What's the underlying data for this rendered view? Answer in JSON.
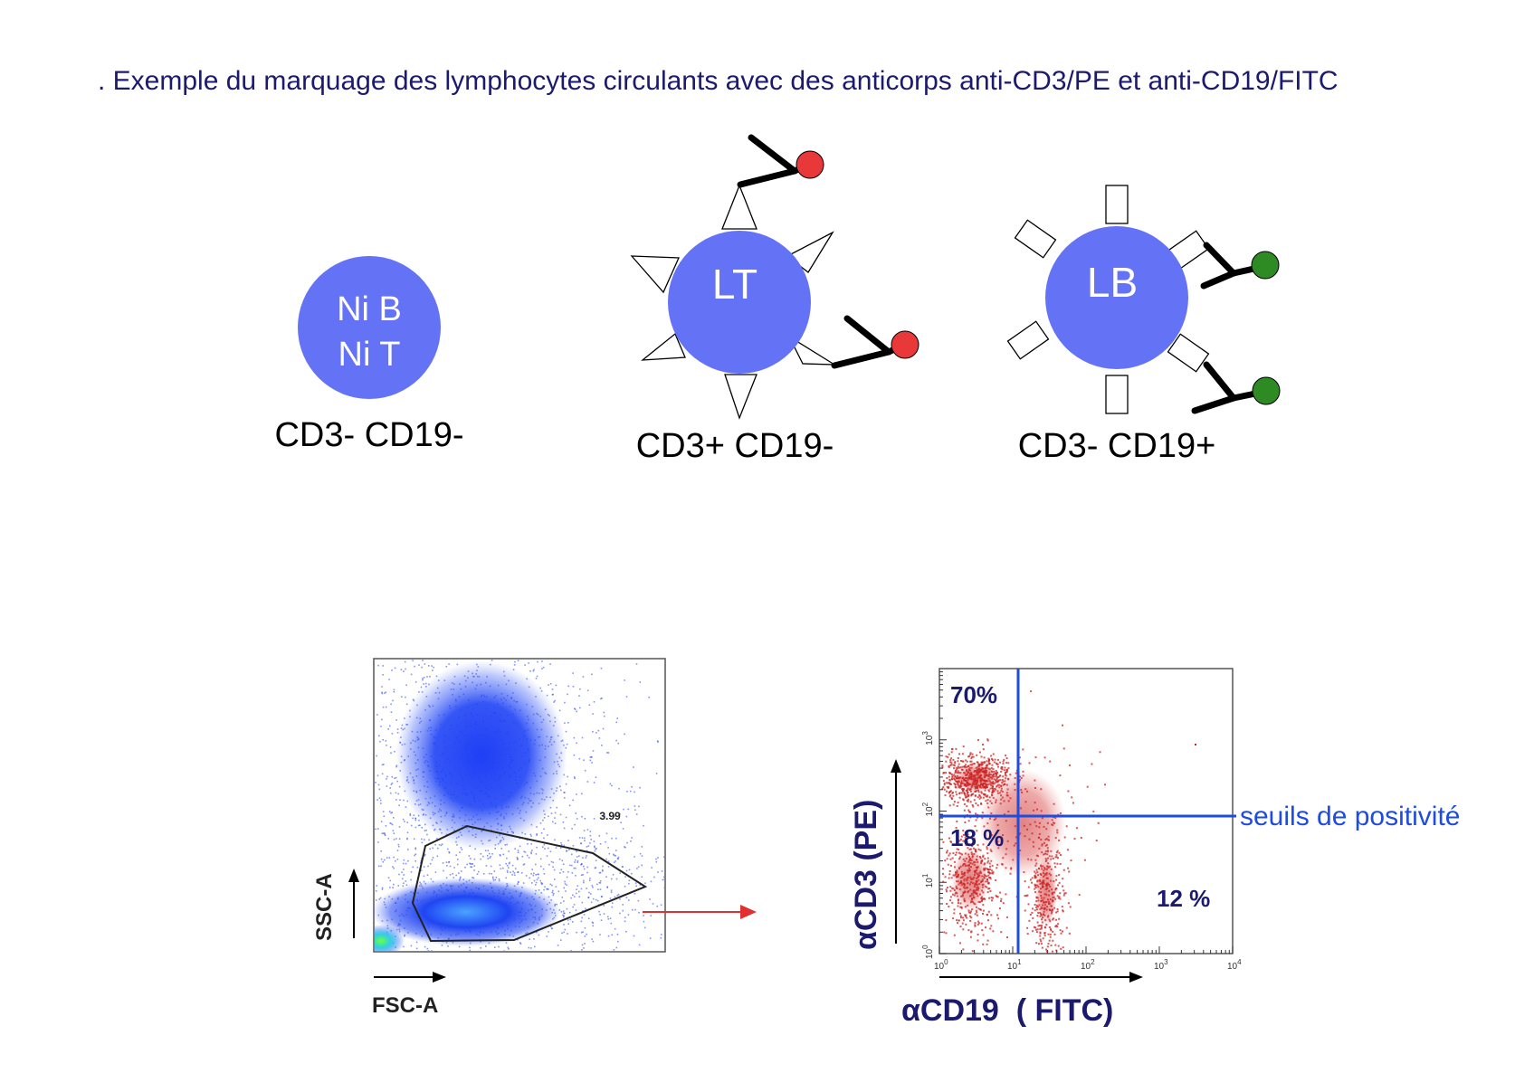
{
  "title": ". Exemple du marquage des lymphocytes circulants avec des anticorps anti-CD3/PE et anti-CD19/FITC",
  "colors": {
    "cell": "#6472f5",
    "pe_fluorophore": "#e8383a",
    "fitc_fluorophore": "#2e8a22",
    "heading": "#1c1a6e",
    "threshold": "#1d4ce0",
    "dots": "#cc2222",
    "flow_density": "#1d3df0",
    "arrow": "#e03030"
  },
  "cells": [
    {
      "label_line1": "Ni B",
      "label_line2": "Ni T",
      "phenotype": "CD3- CD19-"
    },
    {
      "label": "LT",
      "phenotype": "CD3+ CD19-"
    },
    {
      "label": "LB",
      "phenotype": "CD3- CD19+"
    }
  ],
  "flow_plot": {
    "gate_value": "3.99",
    "x_axis": "FSC-A",
    "y_axis": "SSC-A"
  },
  "quadrant_plot": {
    "x_axis": "αCD19  ( FITC)",
    "y_axis": "αCD3 (PE)",
    "quadrants": {
      "upper_left": "70%",
      "lower_left": "18 %",
      "lower_right": "12 %"
    },
    "threshold_label": "seuils de positivité",
    "x_ticks": [
      "10",
      "10",
      "10",
      "10",
      "10"
    ],
    "x_tick_exponents": [
      "0",
      "1",
      "2",
      "3",
      "4"
    ],
    "y_ticks": [
      "10",
      "10",
      "10",
      "10"
    ],
    "y_tick_exponents": [
      "0",
      "1",
      "2",
      "3"
    ]
  }
}
